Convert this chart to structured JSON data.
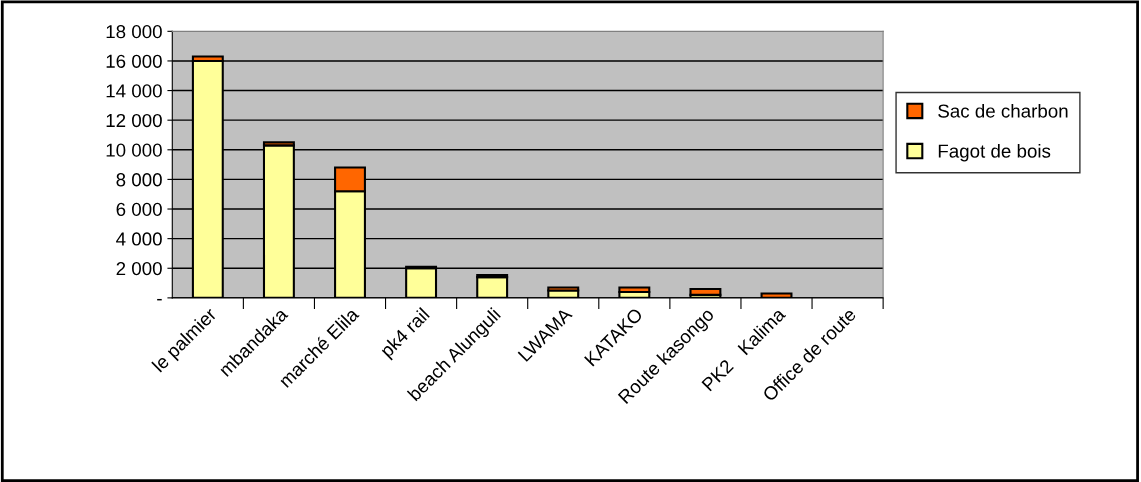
{
  "chart_data": {
    "type": "bar",
    "stacked": true,
    "categories": [
      "le palmier",
      "mbandaka",
      "marché Elila",
      "pk4 rail",
      "beach Alunguli",
      "LWAMA",
      "KATAKO",
      "Route kasongo",
      "PK2   Kalima",
      "Office de route"
    ],
    "series": [
      {
        "name": "Fagot de bois",
        "color": "#ffff99",
        "values": [
          16000,
          10300,
          7200,
          2000,
          1400,
          500,
          400,
          200,
          0,
          0
        ]
      },
      {
        "name": "Sac de charbon",
        "color": "#ff6600",
        "values": [
          300,
          200,
          1600,
          100,
          150,
          200,
          300,
          400,
          300,
          0
        ]
      }
    ],
    "ylim": [
      0,
      18000
    ],
    "yticks": [
      {
        "value": 0,
        "label": "-"
      },
      {
        "value": 2000,
        "label": "2 000"
      },
      {
        "value": 4000,
        "label": "4 000"
      },
      {
        "value": 6000,
        "label": "6 000"
      },
      {
        "value": 8000,
        "label": "8 000"
      },
      {
        "value": 10000,
        "label": "10 000"
      },
      {
        "value": 12000,
        "label": "12 000"
      },
      {
        "value": 14000,
        "label": "14 000"
      },
      {
        "value": 16000,
        "label": "16 000"
      },
      {
        "value": 18000,
        "label": "18 000"
      }
    ],
    "grid": "y",
    "legend": "right"
  }
}
